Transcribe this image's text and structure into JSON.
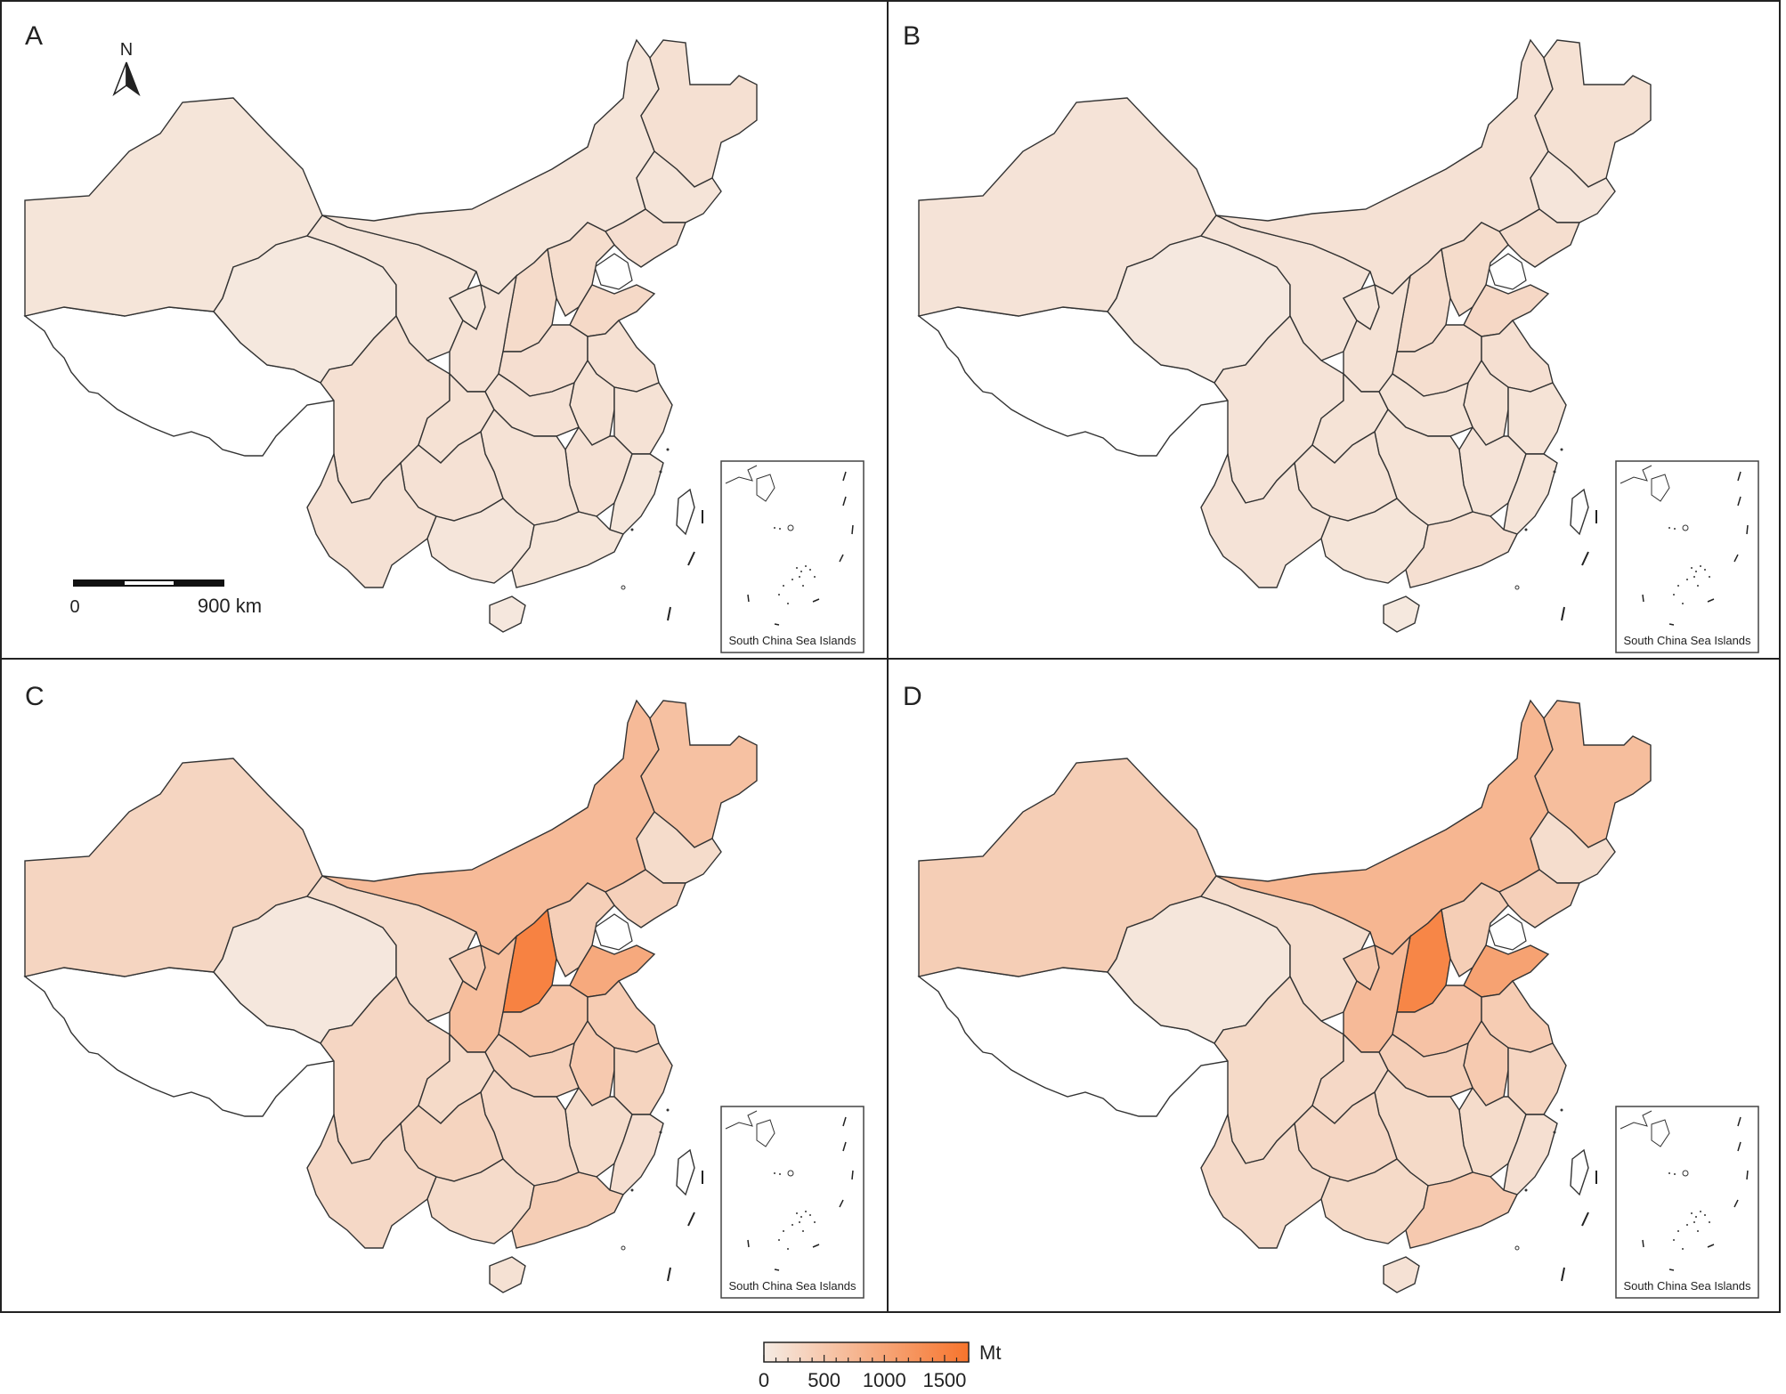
{
  "panels": [
    {
      "label": "A",
      "key": "A"
    },
    {
      "label": "B",
      "key": "B"
    },
    {
      "label": "C",
      "key": "C"
    },
    {
      "label": "D",
      "key": "D"
    }
  ],
  "north_arrow": {
    "label": "N"
  },
  "scale_bar": {
    "start_label": "0",
    "end_label": "900 km"
  },
  "inset": {
    "label": "South China Sea Islands"
  },
  "legend": {
    "unit": "Mt",
    "ticks": [
      "0",
      "500",
      "1000",
      "1500"
    ],
    "tick_values": [
      0,
      500,
      1000,
      1500
    ],
    "min": 0,
    "max": 1700,
    "color_low": "#f5ebe3",
    "color_high": "#f7742c"
  },
  "colors": {
    "no_data": "#ffffff",
    "outline": "#333333",
    "frame": "#222222"
  },
  "region_values": {
    "A": {
      "xinjiang": 90,
      "qinghai": 50,
      "inner_mongolia": 100,
      "heilongjiang": 160,
      "jilin": 100,
      "liaoning": 180,
      "hebei": 200,
      "shanxi": 230,
      "shaanxi": 140,
      "gansu": 100,
      "ningxia": 90,
      "henan": 180,
      "shandong": 260,
      "jiangsu": 160,
      "anhui": 150,
      "hubei": 140,
      "sichuan": 160,
      "chongqing": 150,
      "yunnan": 140,
      "guizhou": 140,
      "hunan": 130,
      "jiangxi": 140,
      "zhejiang": 130,
      "fujian": 70,
      "guangdong": 90,
      "guangxi": 80,
      "hainan": 60
    },
    "B": {
      "xinjiang": 110,
      "qinghai": 40,
      "inner_mongolia": 140,
      "heilongjiang": 150,
      "jilin": 80,
      "liaoning": 190,
      "hebei": 220,
      "shanxi": 210,
      "shaanxi": 130,
      "gansu": 110,
      "ningxia": 100,
      "henan": 190,
      "shandong": 280,
      "jiangsu": 170,
      "anhui": 150,
      "hubei": 120,
      "sichuan": 110,
      "chongqing": 120,
      "yunnan": 110,
      "guizhou": 130,
      "hunan": 120,
      "jiangxi": 110,
      "zhejiang": 120,
      "fujian": 100,
      "guangdong": 170,
      "guangxi": 90,
      "hainan": 50
    },
    "C": {
      "xinjiang": 320,
      "qinghai": 60,
      "inner_mongolia": 700,
      "heilongjiang": 600,
      "jilin": 220,
      "liaoning": 380,
      "hebei": 400,
      "shanxi": 1500,
      "shaanxi": 650,
      "gansu": 230,
      "ningxia": 450,
      "henan": 550,
      "shandong": 950,
      "jiangsu": 450,
      "anhui": 480,
      "hubei": 380,
      "sichuan": 300,
      "chongqing": 250,
      "yunnan": 270,
      "guizhou": 330,
      "hunan": 280,
      "jiangxi": 220,
      "zhejiang": 330,
      "fujian": 180,
      "guangdong": 420,
      "guangxi": 230,
      "hainan": 150
    },
    "D": {
      "xinjiang": 420,
      "qinghai": 70,
      "inner_mongolia": 760,
      "heilongjiang": 650,
      "jilin": 200,
      "liaoning": 400,
      "hebei": 420,
      "shanxi": 1450,
      "shaanxi": 700,
      "gansu": 200,
      "ningxia": 500,
      "henan": 580,
      "shandong": 1050,
      "jiangsu": 450,
      "anhui": 470,
      "hubei": 400,
      "sichuan": 250,
      "chongqing": 270,
      "yunnan": 240,
      "guizhou": 300,
      "hunan": 250,
      "jiangxi": 220,
      "zhejiang": 320,
      "fujian": 170,
      "guangdong": 480,
      "guangxi": 250,
      "hainan": 140
    }
  }
}
